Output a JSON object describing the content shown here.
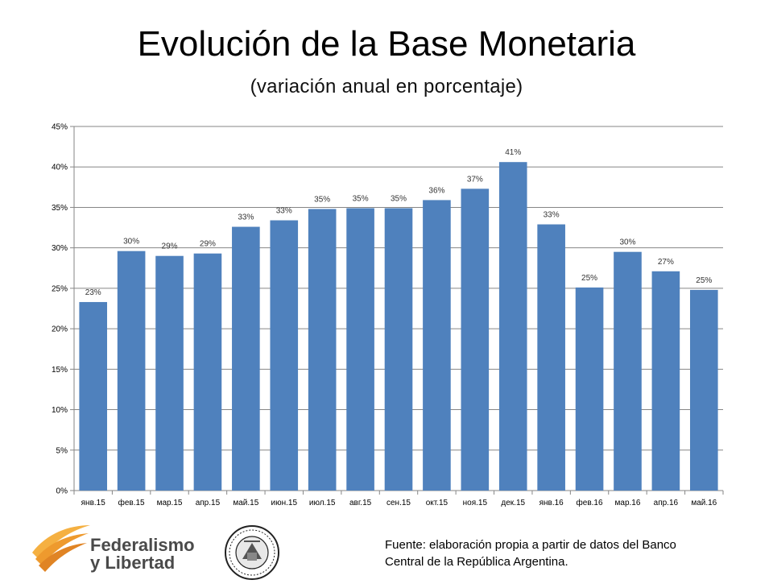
{
  "slide": {
    "title": "Evolución de la Base Monetaria",
    "subtitle": "(variación anual en porcentaje)",
    "source_line1": "Fuente: elaboración propia a partir de datos del Banco",
    "source_line2": "Central de la República Argentina."
  },
  "logos": {
    "federalismo_line1": "Federalismo",
    "federalismo_line2": "y Libertad",
    "federalismo_icon": "swoosh-logo",
    "seal_icon": "university-seal"
  },
  "colors": {
    "bar": "#4F81BD",
    "grid": "#868686",
    "logo_orange": "#F0A030"
  },
  "chart_data": {
    "type": "bar",
    "categories": [
      "янв.15",
      "фев.15",
      "мар.15",
      "апр.15",
      "май.15",
      "июн.15",
      "июл.15",
      "авг.15",
      "сен.15",
      "окт.15",
      "ноя.15",
      "дек.15",
      "янв.16",
      "фев.16",
      "мар.16",
      "апр.16",
      "май.16"
    ],
    "values": [
      23.3,
      29.6,
      29.0,
      29.3,
      32.6,
      33.4,
      34.8,
      34.9,
      34.9,
      35.9,
      37.3,
      40.6,
      32.9,
      25.1,
      29.5,
      27.1,
      24.8
    ],
    "data_labels": [
      "23%",
      "30%",
      "29%",
      "29%",
      "33%",
      "33%",
      "35%",
      "35%",
      "35%",
      "36%",
      "37%",
      "41%",
      "33%",
      "25%",
      "30%",
      "27%",
      "25%"
    ],
    "y_ticks": [
      "0%",
      "5%",
      "10%",
      "15%",
      "20%",
      "25%",
      "30%",
      "35%",
      "40%",
      "45%"
    ],
    "ylim": [
      0,
      45
    ],
    "y_step": 5,
    "grid": true,
    "legend": "none"
  }
}
